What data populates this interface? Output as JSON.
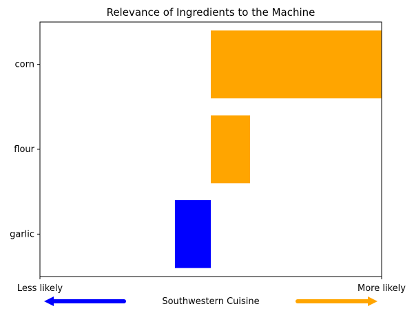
{
  "chart_data": {
    "type": "bar",
    "orientation": "horizontal",
    "title": "Relevance of Ingredients to the Machine",
    "categories": [
      "corn",
      "flour",
      "garlic"
    ],
    "bars": [
      {
        "category": "corn",
        "start": 0.0,
        "end": 0.5,
        "color": "#ffa500"
      },
      {
        "category": "flour",
        "start": 0.0,
        "end": 0.115,
        "color": "#ffa500"
      },
      {
        "category": "garlic",
        "start": -0.105,
        "end": 0.0,
        "color": "#0000ff"
      }
    ],
    "xlim": [
      -0.5,
      0.5
    ],
    "x_tick_labels": {
      "left": "Less likely",
      "right": "More likely"
    },
    "xlabel": "Southwestern Cuisine",
    "arrows": {
      "left": {
        "direction": "left",
        "color": "#0000ff"
      },
      "right": {
        "direction": "right",
        "color": "#ffa500"
      }
    },
    "grid": false,
    "legend": "none"
  }
}
